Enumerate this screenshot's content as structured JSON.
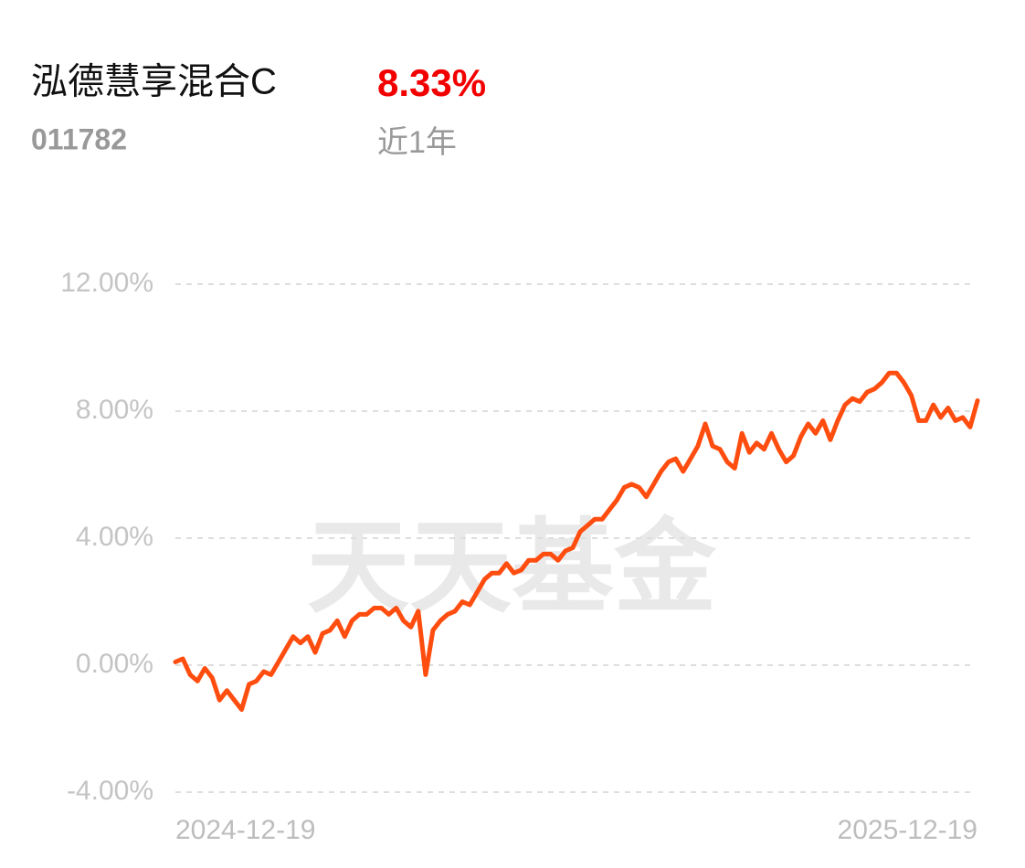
{
  "header": {
    "title": "泓德慧享混合C",
    "return": "8.33%",
    "code": "011782",
    "period": "近1年"
  },
  "watermark": "天天基金",
  "chart_data": {
    "type": "line",
    "color": "#ff4d0f",
    "grid": true,
    "ylim": [
      -4,
      12
    ],
    "yticks": [
      {
        "value": -4,
        "label": "-4.00%"
      },
      {
        "value": 0,
        "label": "0.00%"
      },
      {
        "value": 4,
        "label": "4.00%"
      },
      {
        "value": 8,
        "label": "8.00%"
      },
      {
        "value": 12,
        "label": "12.00%"
      }
    ],
    "categories": [
      "2024-12-19",
      null,
      null,
      null,
      null,
      null,
      null,
      null,
      null,
      null,
      null,
      null,
      null,
      null,
      null,
      null,
      null,
      null,
      null,
      null,
      null,
      null,
      null,
      null,
      null,
      null,
      null,
      null,
      null,
      null,
      null,
      null,
      null,
      null,
      null,
      null,
      null,
      null,
      null,
      null,
      null,
      null,
      null,
      null,
      null,
      null,
      null,
      null,
      null,
      null,
      null,
      null,
      null,
      null,
      null,
      null,
      null,
      null,
      null,
      null,
      null,
      null,
      null,
      null,
      null,
      null,
      null,
      null,
      null,
      null,
      null,
      null,
      null,
      null,
      null,
      null,
      null,
      null,
      null,
      null,
      null,
      null,
      null,
      null,
      null,
      null,
      null,
      null,
      null,
      null,
      null,
      null,
      null,
      null,
      null,
      null,
      null,
      null,
      null,
      null,
      null,
      null,
      null,
      null,
      null,
      null,
      null,
      null,
      null,
      "2025-12-19"
    ],
    "values": [
      0.1,
      0.2,
      -0.3,
      -0.5,
      -0.1,
      -0.4,
      -1.1,
      -0.8,
      -1.1,
      -1.4,
      -0.6,
      -0.5,
      -0.2,
      -0.3,
      0.1,
      0.5,
      0.9,
      0.7,
      0.9,
      0.4,
      1.0,
      1.1,
      1.4,
      0.9,
      1.4,
      1.6,
      1.6,
      1.8,
      1.8,
      1.6,
      1.8,
      1.4,
      1.2,
      1.7,
      -0.3,
      1.1,
      1.4,
      1.6,
      1.7,
      2.0,
      1.9,
      2.3,
      2.7,
      2.9,
      2.9,
      3.2,
      2.9,
      3.0,
      3.3,
      3.3,
      3.5,
      3.5,
      3.3,
      3.6,
      3.7,
      4.2,
      4.4,
      4.6,
      4.6,
      4.9,
      5.2,
      5.6,
      5.7,
      5.6,
      5.3,
      5.7,
      6.1,
      6.4,
      6.5,
      6.1,
      6.5,
      6.9,
      7.6,
      6.9,
      6.8,
      6.4,
      6.2,
      7.3,
      6.7,
      7.0,
      6.8,
      7.3,
      6.8,
      6.4,
      6.6,
      7.2,
      7.6,
      7.3,
      7.7,
      7.1,
      7.7,
      8.2,
      8.4,
      8.3,
      8.6,
      8.7,
      8.9,
      9.2,
      9.2,
      8.9,
      8.5,
      7.7,
      7.7,
      8.2,
      7.8,
      8.1,
      7.7,
      7.8,
      7.5,
      8.33
    ]
  }
}
